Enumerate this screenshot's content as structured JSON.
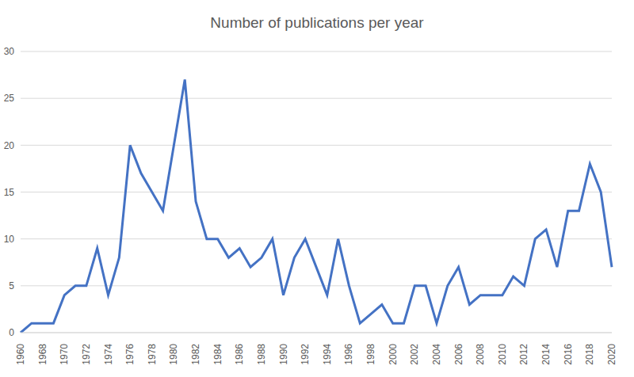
{
  "chart_data": {
    "type": "line",
    "title": "Number of publications per year",
    "categories": [
      "1960",
      null,
      "1968",
      null,
      "1970",
      null,
      "1972",
      null,
      "1974",
      null,
      "1976",
      null,
      "1978",
      null,
      "1980",
      null,
      "1982",
      null,
      "1984",
      null,
      "1986",
      null,
      "1988",
      null,
      "1990",
      null,
      "1992",
      null,
      "1994",
      null,
      "1996",
      null,
      "1998",
      null,
      "2000",
      null,
      "2002",
      null,
      "2004",
      null,
      "2006",
      null,
      "2008",
      null,
      "2010",
      null,
      "2012",
      null,
      "2014",
      null,
      "2016",
      null,
      "2018",
      null,
      "2020"
    ],
    "values": [
      0,
      1,
      1,
      1,
      4,
      5,
      5,
      9,
      4,
      8,
      20,
      17,
      15,
      13,
      20,
      27,
      14,
      10,
      10,
      8,
      9,
      7,
      8,
      10,
      4,
      8,
      10,
      7,
      4,
      10,
      5,
      1,
      2,
      3,
      1,
      1,
      5,
      5,
      1,
      5,
      7,
      3,
      4,
      4,
      4,
      6,
      5,
      10,
      11,
      7,
      13,
      13,
      18,
      15,
      7
    ],
    "color": "#4472c4",
    "ylim": [
      0,
      30
    ],
    "yticks": [
      0,
      5,
      10,
      15,
      20,
      25,
      30
    ],
    "grid": true
  }
}
